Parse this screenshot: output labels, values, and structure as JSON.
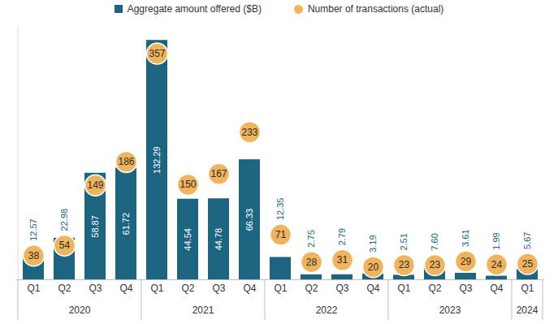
{
  "chart_data": {
    "type": "bar",
    "categories": [
      "Q1",
      "Q2",
      "Q3",
      "Q4",
      "Q1",
      "Q2",
      "Q3",
      "Q4",
      "Q1",
      "Q2",
      "Q3",
      "Q4",
      "Q1",
      "Q2",
      "Q3",
      "Q4",
      "Q1"
    ],
    "years": [
      "2020",
      "2020",
      "2020",
      "2020",
      "2021",
      "2021",
      "2021",
      "2021",
      "2022",
      "2022",
      "2022",
      "2022",
      "2023",
      "2023",
      "2023",
      "2023",
      "2024"
    ],
    "series": [
      {
        "name": "Aggregate amount offered ($B)",
        "type": "bar",
        "color": "#1b6580",
        "values": [
          12.57,
          22.98,
          58.87,
          61.72,
          132.29,
          44.54,
          44.78,
          66.33,
          12.35,
          2.75,
          2.79,
          3.19,
          2.51,
          7.6,
          3.61,
          1.99,
          5.67
        ],
        "value_labels": [
          "12.57",
          "22.98",
          "58.87",
          "61.72",
          "132.29",
          "44.54",
          "44.78",
          "66.33",
          "12.35",
          "2.75",
          "2.79",
          "3.19",
          "2.51",
          "7.60",
          "3.61",
          "1.99",
          "5.67"
        ]
      },
      {
        "name": "Number of transactions (actual)",
        "type": "scatter",
        "marker": "circle",
        "color": "#f0b45c",
        "axis": "y2",
        "values": [
          38,
          54,
          149,
          186,
          357,
          150,
          167,
          233,
          71,
          28,
          31,
          20,
          23,
          23,
          29,
          24,
          25
        ]
      }
    ],
    "ylim": [
      0,
      140
    ],
    "yticks": [],
    "y2lim": [
      0,
      400
    ],
    "y2ticks": [],
    "data_labels": true,
    "tick_labels": "x",
    "legend": "top",
    "grid": false
  }
}
